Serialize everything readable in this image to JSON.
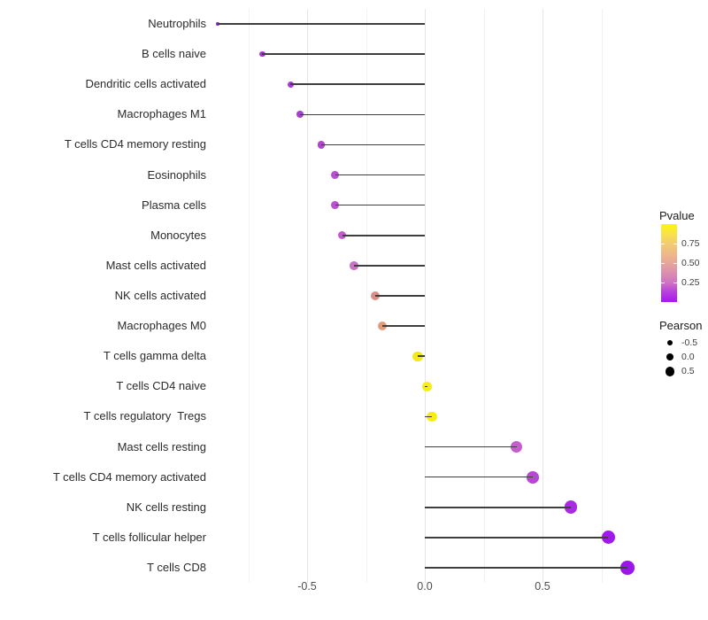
{
  "chart_data": {
    "type": "lollipop",
    "orientation": "horizontal",
    "title": "",
    "xlabel": "",
    "ylabel": "",
    "x_range": [
      -0.9,
      0.9
    ],
    "x_major_ticks": [
      -0.5,
      0.0,
      0.5
    ],
    "x_major_tick_labels": [
      "-0.5",
      "0.0",
      "0.5"
    ],
    "x_minor_ticks": [
      -0.75,
      -0.25,
      0.25,
      0.75
    ],
    "baseline_value": 0.0,
    "grid_major_color": "#e5e5e5",
    "grid_minor_color": "#f1f1f1",
    "stem_color": "#3e3e3e",
    "points": [
      {
        "label": "Neutrophils",
        "pearson": -0.88,
        "color": "#9129cc"
      },
      {
        "label": "B cells naive",
        "pearson": -0.69,
        "color": "#a636d4"
      },
      {
        "label": "Dendritic cells activated",
        "pearson": -0.57,
        "color": "#a93ad3"
      },
      {
        "label": "Macrophages M1",
        "pearson": -0.53,
        "color": "#aa3dd2"
      },
      {
        "label": "T cells CD4 memory resting",
        "pearson": -0.44,
        "color": "#af46d0"
      },
      {
        "label": "Eosinophils",
        "pearson": -0.38,
        "color": "#b84ed1"
      },
      {
        "label": "Plasma cells",
        "pearson": -0.38,
        "color": "#ba51d1"
      },
      {
        "label": "Monocytes",
        "pearson": -0.35,
        "color": "#c05cca"
      },
      {
        "label": "Mast cells activated",
        "pearson": -0.3,
        "color": "#c873c1"
      },
      {
        "label": "NK cells activated",
        "pearson": -0.21,
        "color": "#d98e88"
      },
      {
        "label": "Macrophages M0",
        "pearson": -0.18,
        "color": "#e09c78"
      },
      {
        "label": "T cells gamma delta",
        "pearson": -0.03,
        "color": "#f2e81c"
      },
      {
        "label": "T cells CD4 naive",
        "pearson": 0.01,
        "color": "#f7ee12"
      },
      {
        "label": "T cells regulatory  Tregs",
        "pearson": 0.03,
        "color": "#f6ec16"
      },
      {
        "label": "Mast cells resting",
        "pearson": 0.39,
        "color": "#c45ecc"
      },
      {
        "label": "T cells CD4 memory activated",
        "pearson": 0.46,
        "color": "#b847d6"
      },
      {
        "label": "NK cells resting",
        "pearson": 0.62,
        "color": "#a82ae2"
      },
      {
        "label": "T cells follicular helper",
        "pearson": 0.78,
        "color": "#9f1aea"
      },
      {
        "label": "T cells CD8",
        "pearson": 0.86,
        "color": "#9c14ec"
      }
    ],
    "legend_pvalue": {
      "title": "Pvalue",
      "tick_labels": [
        "0.75",
        "0.50",
        "0.25"
      ],
      "tick_values": [
        0.75,
        0.5,
        0.25
      ],
      "range": [
        0,
        1
      ],
      "gradient_stops_bottom_to_top": [
        {
          "pos": 0.0,
          "color": "#a816f0"
        },
        {
          "pos": 0.13,
          "color": "#b840de"
        },
        {
          "pos": 0.25,
          "color": "#cf74c2"
        },
        {
          "pos": 0.38,
          "color": "#dc8fae"
        },
        {
          "pos": 0.5,
          "color": "#e7a69b"
        },
        {
          "pos": 0.63,
          "color": "#eeba85"
        },
        {
          "pos": 0.75,
          "color": "#f2cc72"
        },
        {
          "pos": 0.88,
          "color": "#f8e348"
        },
        {
          "pos": 1.0,
          "color": "#fdf60d"
        }
      ]
    },
    "legend_pearson": {
      "title": "Pearson",
      "dot_color": "#000000",
      "items": [
        {
          "label": "-0.5",
          "value": -0.5,
          "diameter": 6.6
        },
        {
          "label": "0.0",
          "value": 0.0,
          "diameter": 8.6
        },
        {
          "label": "0.5",
          "value": 0.5,
          "diameter": 10.6
        }
      ]
    }
  }
}
